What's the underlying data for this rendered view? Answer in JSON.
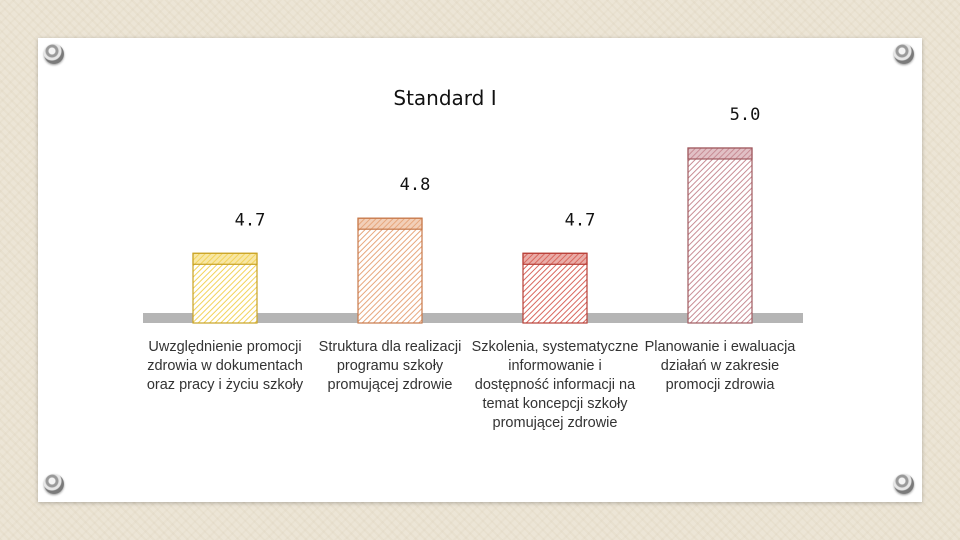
{
  "chart_data": {
    "type": "bar",
    "title": "Standard I",
    "categories": [
      "Uwzględnienie promocji zdrowia w dokumentach oraz pracy i życiu szkoły",
      "Struktura dla realizacji programu szkoły promującej zdrowie",
      "Szkolenia, systematyczne informowanie i dostępność informacji na temat koncepcji szkoły promującej zdrowie",
      "Planowanie i ewaluacja działań w zakresie promocji zdrowia"
    ],
    "values": [
      4.7,
      4.8,
      4.7,
      5.0
    ],
    "value_labels": [
      "4.7",
      "4.8",
      "4.7",
      "5.0"
    ],
    "colors": [
      "#f3d35a",
      "#e7a77d",
      "#d9675e",
      "#c88d95"
    ],
    "edge_colors": [
      "#c9a325",
      "#c7794a",
      "#b73f37",
      "#a0595f"
    ],
    "xlabel": "",
    "ylabel": ""
  }
}
